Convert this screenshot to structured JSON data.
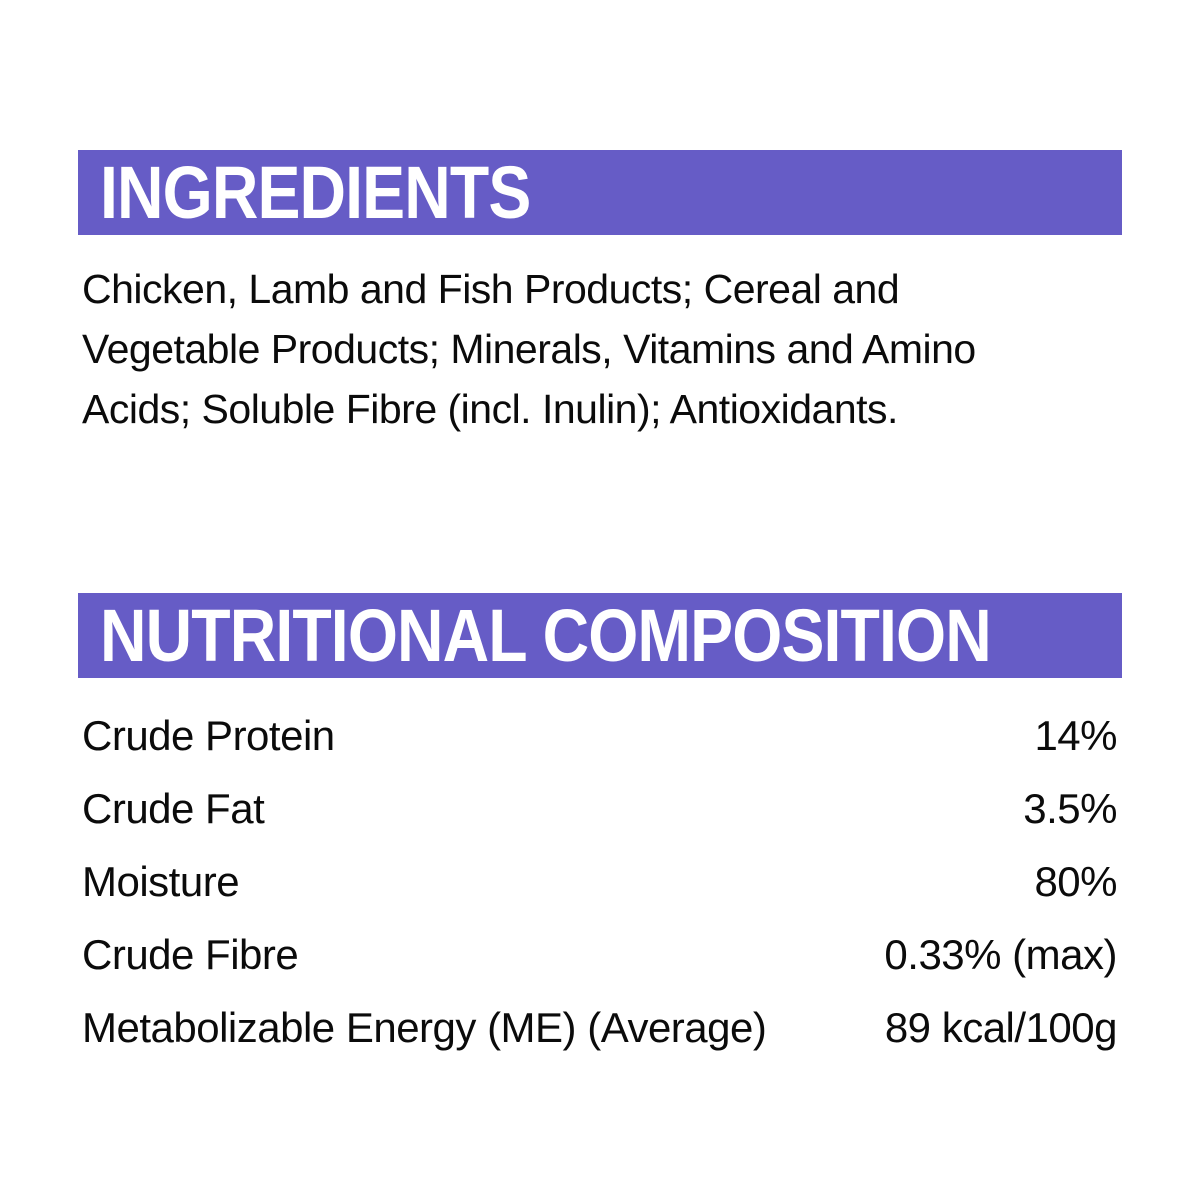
{
  "ingredients": {
    "header": "INGREDIENTS",
    "text": "Chicken, Lamb and Fish Products; Cereal and Vegetable Products; Minerals, Vitamins and Amino Acids; Soluble Fibre (incl. Inulin); Antioxidants."
  },
  "nutrition": {
    "header": "NUTRITIONAL COMPOSITION",
    "rows": [
      {
        "label": "Crude Protein",
        "value": "14%"
      },
      {
        "label": "Crude Fat",
        "value": "3.5%"
      },
      {
        "label": "Moisture",
        "value": "80%"
      },
      {
        "label": "Crude Fibre",
        "value": "0.33% (max)"
      },
      {
        "label": "Metabolizable Energy (ME) (Average)",
        "value": "89 kcal/100g"
      }
    ]
  },
  "colors": {
    "header_bar": "#665CC6",
    "header_text": "#FFFFFF",
    "body_text": "#0B0B0B",
    "background": "#FFFFFF"
  }
}
